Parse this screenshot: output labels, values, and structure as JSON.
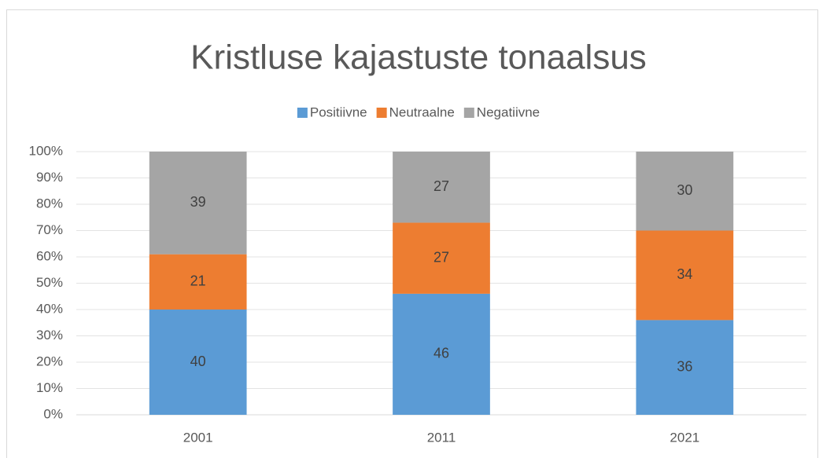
{
  "chart_data": {
    "type": "stacked_bar",
    "title": "Kristluse kajastuste tonaalsus",
    "categories": [
      "2001",
      "2011",
      "2021"
    ],
    "series": [
      {
        "name": "Positiivne",
        "color": "#5b9bd5",
        "values": [
          40,
          46,
          36
        ]
      },
      {
        "name": "Neutraalne",
        "color": "#ed7d31",
        "values": [
          21,
          27,
          34
        ]
      },
      {
        "name": "Negatiivne",
        "color": "#a5a5a5",
        "values": [
          39,
          27,
          30
        ]
      }
    ],
    "ylim": [
      0,
      100
    ],
    "yticks": [
      {
        "value": 0,
        "label": "0%"
      },
      {
        "value": 10,
        "label": "10%"
      },
      {
        "value": 20,
        "label": "20%"
      },
      {
        "value": 30,
        "label": "30%"
      },
      {
        "value": 40,
        "label": "40%"
      },
      {
        "value": 50,
        "label": "50%"
      },
      {
        "value": 60,
        "label": "60%"
      },
      {
        "value": 70,
        "label": "70%"
      },
      {
        "value": 80,
        "label": "80%"
      },
      {
        "value": 90,
        "label": "90%"
      },
      {
        "value": 100,
        "label": "100%"
      }
    ],
    "grid": true,
    "legend": "top"
  }
}
